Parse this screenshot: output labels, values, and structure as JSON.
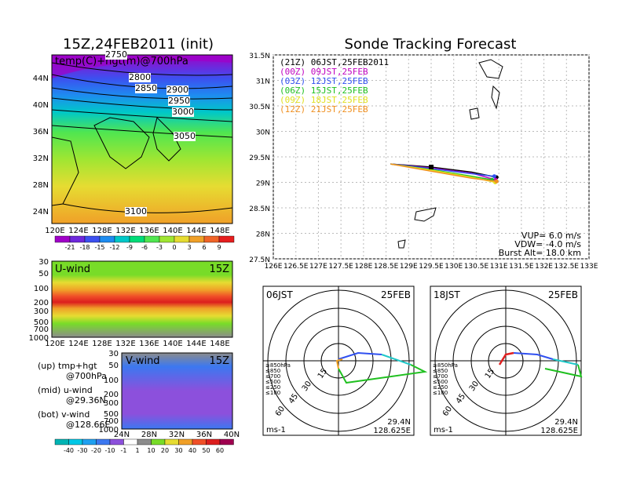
{
  "left_panel": {
    "title": "15Z,24FEB2011 (init)",
    "map_label": "temp(C)+hgt(m)@700hPa",
    "lon_ticks": [
      "120E",
      "124E",
      "128E",
      "132E",
      "136E",
      "140E",
      "144E",
      "148E"
    ],
    "lat_ticks": [
      "44N",
      "40N",
      "36N",
      "32N",
      "28N",
      "24N"
    ],
    "contour_labels": [
      "2750",
      "2800",
      "2850",
      "2900",
      "2950",
      "3000",
      "3050",
      "3100"
    ],
    "colorbar_labels": [
      "-21",
      "-18",
      "-15",
      "-12",
      "-9",
      "-6",
      "-3",
      "0",
      "3",
      "6",
      "9"
    ],
    "colorbar_colors": [
      "#a000c8",
      "#6e28dc",
      "#3c50f0",
      "#1e8cf0",
      "#00c8c8",
      "#00dc78",
      "#50e650",
      "#a0e632",
      "#e6dc32",
      "#f0a028",
      "#f06428",
      "#e61e1e"
    ]
  },
  "u_wind": {
    "label": "U-wind",
    "time": "15Z",
    "p_ticks": [
      "30",
      "50",
      "100",
      "200",
      "300",
      "500",
      "700",
      "1000"
    ],
    "lon_ticks": [
      "120E",
      "124E",
      "128E",
      "132E",
      "136E",
      "140E",
      "144E",
      "148E"
    ]
  },
  "v_wind": {
    "label": "V-wind",
    "time": "15Z",
    "p_ticks": [
      "30",
      "50",
      "100",
      "200",
      "300",
      "500",
      "700",
      "1000"
    ],
    "lat_ticks": [
      "24N",
      "28N",
      "32N",
      "36N",
      "40N"
    ]
  },
  "legend_notes": [
    {
      "line1": "(up) tmp+hgt",
      "line2": "@700hPa"
    },
    {
      "line1": "(mid) u-wind",
      "line2": "@29.36N"
    },
    {
      "line1": "(bot) v-wind",
      "line2": "@128.66E"
    }
  ],
  "wind_colorbar": {
    "labels": [
      "-40",
      "-30",
      "-20",
      "-10",
      "-1",
      "1",
      "10",
      "20",
      "30",
      "40",
      "50",
      "60"
    ],
    "colors": [
      "#00b4b4",
      "#00c8e6",
      "#1ea0f0",
      "#3c78f0",
      "#8c50dc",
      "#ffffff",
      "#8c8c8c",
      "#78dc28",
      "#e6dc32",
      "#f0a028",
      "#f05028",
      "#dc1e1e",
      "#a00050"
    ]
  },
  "tracking": {
    "title": "Sonde Tracking Forecast",
    "runs": [
      {
        "label": "(21Z) 06JST,25FEB2011",
        "color": "#000000"
      },
      {
        "label": "(00Z) 09JST,25FEB",
        "color": "#c000c0"
      },
      {
        "label": "(03Z) 12JST,25FEB",
        "color": "#3050f0"
      },
      {
        "label": "(06Z) 15JST,25FEB",
        "color": "#20c020"
      },
      {
        "label": "(09Z) 18JST,25FEB",
        "color": "#e0e020"
      },
      {
        "label": "(12Z) 21JST,25FEB",
        "color": "#f09020"
      }
    ],
    "lat_ticks": [
      "31.5N",
      "31N",
      "30.5N",
      "30N",
      "29.5N",
      "29N",
      "28.5N",
      "28N",
      "27.5N"
    ],
    "lon_ticks": [
      "126E",
      "126.5E",
      "127E",
      "127.5E",
      "128E",
      "128.5E",
      "129E",
      "129.5E",
      "130E",
      "130.5E",
      "131E",
      "131.5E",
      "132E",
      "132.5E",
      "133E"
    ],
    "vup": "VUP= 6.0 m/s",
    "vdw": "VDW= -4.0 m/s",
    "burst": "Burst Alt= 18.0 km"
  },
  "polar_left": {
    "time": "06JST",
    "date": "25FEB",
    "ring_labels": [
      "15",
      "30",
      "45",
      "60"
    ],
    "levels": [
      {
        "label": "≥850hPa",
        "color": "#e02020"
      },
      {
        "label": "≤850",
        "color": "#f0a020"
      },
      {
        "label": "≤700",
        "color": "#e0e020"
      },
      {
        "label": "≤500",
        "color": "#20c020"
      },
      {
        "label": "≤250",
        "color": "#20c8c8"
      },
      {
        "label": "≤100",
        "color": "#3050f0"
      }
    ],
    "unit": "ms-1",
    "lat": "29.4N",
    "lon": "128.625E"
  },
  "polar_right": {
    "time": "18JST",
    "date": "25FEB",
    "ring_labels": [
      "15",
      "30",
      "45",
      "60"
    ],
    "levels": [
      {
        "label": "≥850hPa",
        "color": "#e02020"
      },
      {
        "label": "≤850",
        "color": "#f0a020"
      },
      {
        "label": "≤700",
        "color": "#e0e020"
      },
      {
        "label": "≤500",
        "color": "#20c020"
      },
      {
        "label": "≤250",
        "color": "#20c8c8"
      },
      {
        "label": "≤100",
        "color": "#3050f0"
      }
    ],
    "unit": "ms-1",
    "lat": "29.4N",
    "lon": "128.625E"
  },
  "chart_data": [
    {
      "type": "heatmap",
      "title": "15Z,24FEB2011 (init)",
      "subtitle": "temp(C)+hgt(m)@700hPa",
      "xlim": [
        120,
        150
      ],
      "ylim": [
        22,
        47
      ],
      "contour_labels": [
        2750,
        2800,
        2850,
        2900,
        2950,
        3000,
        3050,
        3100
      ],
      "colorbar": [
        -21,
        -18,
        -15,
        -12,
        -9,
        -6,
        -3,
        0,
        3,
        6,
        9
      ]
    },
    {
      "type": "line",
      "title": "Sonde Tracking Forecast",
      "xlim": [
        126,
        133
      ],
      "ylim": [
        27.5,
        31.5
      ],
      "series": [
        {
          "name": "(21Z) 06JST,25FEB2011",
          "x": [
            128.6,
            129.5,
            130.4,
            130.95
          ],
          "y": [
            29.36,
            29.3,
            29.2,
            29.1
          ]
        },
        {
          "name": "(00Z) 09JST,25FEB",
          "x": [
            128.6,
            129.5,
            130.4,
            130.93
          ],
          "y": [
            29.36,
            29.28,
            29.18,
            29.05
          ]
        },
        {
          "name": "(03Z) 12JST,25FEB",
          "x": [
            128.6,
            129.5,
            130.4,
            130.9
          ],
          "y": [
            29.36,
            29.27,
            29.17,
            29.12
          ]
        },
        {
          "name": "(06Z) 15JST,25FEB",
          "x": [
            128.6,
            129.5,
            130.4,
            130.85
          ],
          "y": [
            29.36,
            29.25,
            29.12,
            29.05
          ]
        },
        {
          "name": "(09Z) 18JST,25FEB",
          "x": [
            128.6,
            129.5,
            130.4,
            130.92
          ],
          "y": [
            29.36,
            29.24,
            29.1,
            29.0
          ]
        },
        {
          "name": "(12Z) 21JST,25FEB",
          "x": [
            128.6,
            129.5,
            130.4,
            130.95
          ],
          "y": [
            29.36,
            29.22,
            29.08,
            29.02
          ]
        }
      ]
    }
  ]
}
